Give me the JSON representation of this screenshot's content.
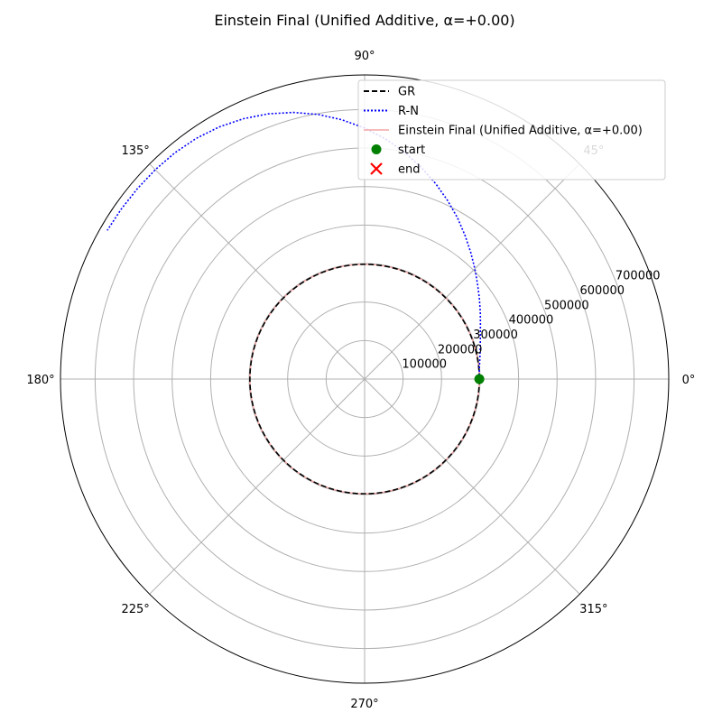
{
  "chart_data": {
    "type": "polar-line",
    "title": "Einstein Final (Unified Additive, α=+0.00)",
    "angle_unit": "degrees",
    "angle_ticks": [
      "0°",
      "45°",
      "90°",
      "135°",
      "180°",
      "225°",
      "270°",
      "315°"
    ],
    "r_ticks": [
      100000,
      200000,
      300000,
      400000,
      500000,
      600000,
      700000
    ],
    "r_tick_labels": [
      "100000",
      "200000",
      "300000",
      "400000",
      "500000",
      "600000",
      "700000"
    ],
    "r_max": 790000,
    "r_label_angle_deg": 22.5,
    "grid": true,
    "legend_position": "upper-right",
    "series": [
      {
        "name": "GR",
        "color": "#000000",
        "style": "dashed",
        "shape": "circle",
        "r_constant": 298000,
        "theta_range_deg": [
          0,
          360
        ]
      },
      {
        "name": "R-N",
        "color": "#0000ff",
        "style": "dotted",
        "theta_deg": [
          0,
          5,
          10,
          15,
          20,
          25,
          30,
          35,
          40,
          45,
          50,
          55,
          60,
          65,
          70,
          75,
          80,
          85,
          90,
          95,
          100,
          105,
          110,
          115,
          120,
          125,
          130,
          135,
          140,
          145,
          150
        ],
        "r": [
          298000,
          299000,
          304000,
          311000,
          320000,
          332000,
          347000,
          364000,
          383000,
          405000,
          429000,
          455000,
          483000,
          511000,
          540000,
          569000,
          598000,
          626000,
          652000,
          676000,
          698000,
          717000,
          733000,
          746000,
          756000,
          763000,
          767000,
          769000,
          770000,
          771000,
          772000
        ]
      },
      {
        "name": "Einstein Final (Unified Additive, α=+0.00)",
        "color": "#f4a6a6",
        "style": "solid",
        "shape": "circle",
        "r_constant": 298000,
        "theta_range_deg": [
          0,
          360
        ]
      }
    ],
    "markers": [
      {
        "name": "start",
        "color": "#008000",
        "symbol": "circle",
        "theta_deg": 0,
        "r": 298000
      },
      {
        "name": "end",
        "color": "#ff0000",
        "symbol": "x",
        "theta_deg": 0,
        "r": 298000
      }
    ]
  }
}
